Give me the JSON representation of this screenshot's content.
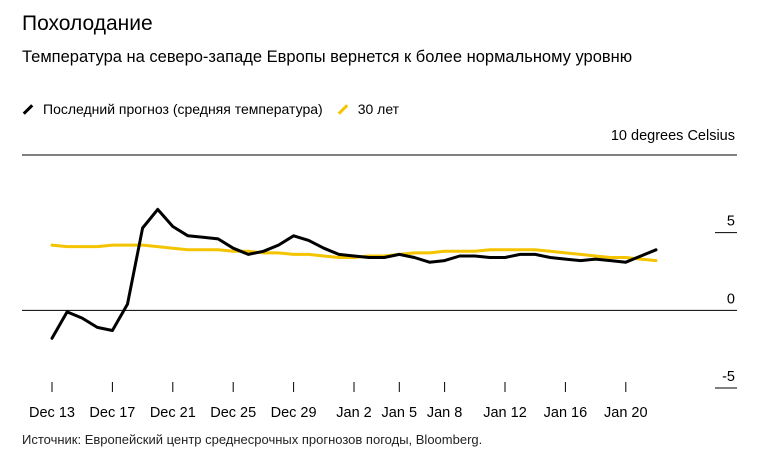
{
  "title": "Похолодание",
  "subtitle": "Температура на северо-западе Европы вернется к более нормальному уровню",
  "legend": [
    {
      "label": "Последний прогноз (средняя температура)",
      "color": "#000000"
    },
    {
      "label": "30 лет",
      "color": "#f5c400"
    }
  ],
  "unit_label": "10 degrees Celsius",
  "source": "Источник: Европейский центр среднесрочных прогнозов погоды, Bloomberg.",
  "chart_data": {
    "type": "line",
    "ylim": [
      -5,
      10
    ],
    "y_ticks": [
      {
        "value": 5,
        "label": "5"
      },
      {
        "value": 0,
        "label": "0"
      },
      {
        "value": -5,
        "label": "-5"
      }
    ],
    "x_ticks": [
      {
        "day": 0,
        "label": "Dec 13"
      },
      {
        "day": 4,
        "label": "Dec 17"
      },
      {
        "day": 8,
        "label": "Dec 21"
      },
      {
        "day": 12,
        "label": "Dec 25"
      },
      {
        "day": 16,
        "label": "Dec 29"
      },
      {
        "day": 20,
        "label": "Jan 2"
      },
      {
        "day": 23,
        "label": "Jan 5"
      },
      {
        "day": 26,
        "label": "Jan 8"
      },
      {
        "day": 30,
        "label": "Jan 12"
      },
      {
        "day": 34,
        "label": "Jan 16"
      },
      {
        "day": 38,
        "label": "Jan 20"
      }
    ],
    "series": [
      {
        "name": "Последний прогноз (средняя температура)",
        "color": "#000000",
        "points": [
          [
            0,
            -1.8
          ],
          [
            1,
            -0.1
          ],
          [
            2,
            -0.5
          ],
          [
            3,
            -1.1
          ],
          [
            4,
            -1.3
          ],
          [
            5,
            0.4
          ],
          [
            6,
            5.3
          ],
          [
            7,
            6.5
          ],
          [
            8,
            5.4
          ],
          [
            9,
            4.8
          ],
          [
            10,
            4.7
          ],
          [
            11,
            4.6
          ],
          [
            12,
            4.0
          ],
          [
            13,
            3.6
          ],
          [
            14,
            3.8
          ],
          [
            15,
            4.2
          ],
          [
            16,
            4.8
          ],
          [
            17,
            4.5
          ],
          [
            18,
            4.0
          ],
          [
            19,
            3.6
          ],
          [
            20,
            3.5
          ],
          [
            21,
            3.4
          ],
          [
            22,
            3.4
          ],
          [
            23,
            3.6
          ],
          [
            24,
            3.4
          ],
          [
            25,
            3.1
          ],
          [
            26,
            3.2
          ],
          [
            27,
            3.5
          ],
          [
            28,
            3.5
          ],
          [
            29,
            3.4
          ],
          [
            30,
            3.4
          ],
          [
            31,
            3.6
          ],
          [
            32,
            3.6
          ],
          [
            33,
            3.4
          ],
          [
            34,
            3.3
          ],
          [
            35,
            3.2
          ],
          [
            36,
            3.3
          ],
          [
            37,
            3.2
          ],
          [
            38,
            3.1
          ],
          [
            39,
            3.5
          ],
          [
            40,
            3.9
          ]
        ]
      },
      {
        "name": "30 лет",
        "color": "#f5c400",
        "points": [
          [
            0,
            4.2
          ],
          [
            1,
            4.1
          ],
          [
            2,
            4.1
          ],
          [
            3,
            4.1
          ],
          [
            4,
            4.2
          ],
          [
            5,
            4.2
          ],
          [
            6,
            4.2
          ],
          [
            7,
            4.1
          ],
          [
            8,
            4.0
          ],
          [
            9,
            3.9
          ],
          [
            10,
            3.9
          ],
          [
            11,
            3.9
          ],
          [
            12,
            3.8
          ],
          [
            13,
            3.8
          ],
          [
            14,
            3.7
          ],
          [
            15,
            3.7
          ],
          [
            16,
            3.6
          ],
          [
            17,
            3.6
          ],
          [
            18,
            3.5
          ],
          [
            19,
            3.4
          ],
          [
            20,
            3.4
          ],
          [
            21,
            3.5
          ],
          [
            22,
            3.5
          ],
          [
            23,
            3.6
          ],
          [
            24,
            3.7
          ],
          [
            25,
            3.7
          ],
          [
            26,
            3.8
          ],
          [
            27,
            3.8
          ],
          [
            28,
            3.8
          ],
          [
            29,
            3.9
          ],
          [
            30,
            3.9
          ],
          [
            31,
            3.9
          ],
          [
            32,
            3.9
          ],
          [
            33,
            3.8
          ],
          [
            34,
            3.7
          ],
          [
            35,
            3.6
          ],
          [
            36,
            3.5
          ],
          [
            37,
            3.4
          ],
          [
            38,
            3.4
          ],
          [
            39,
            3.3
          ],
          [
            40,
            3.2
          ]
        ]
      }
    ]
  }
}
